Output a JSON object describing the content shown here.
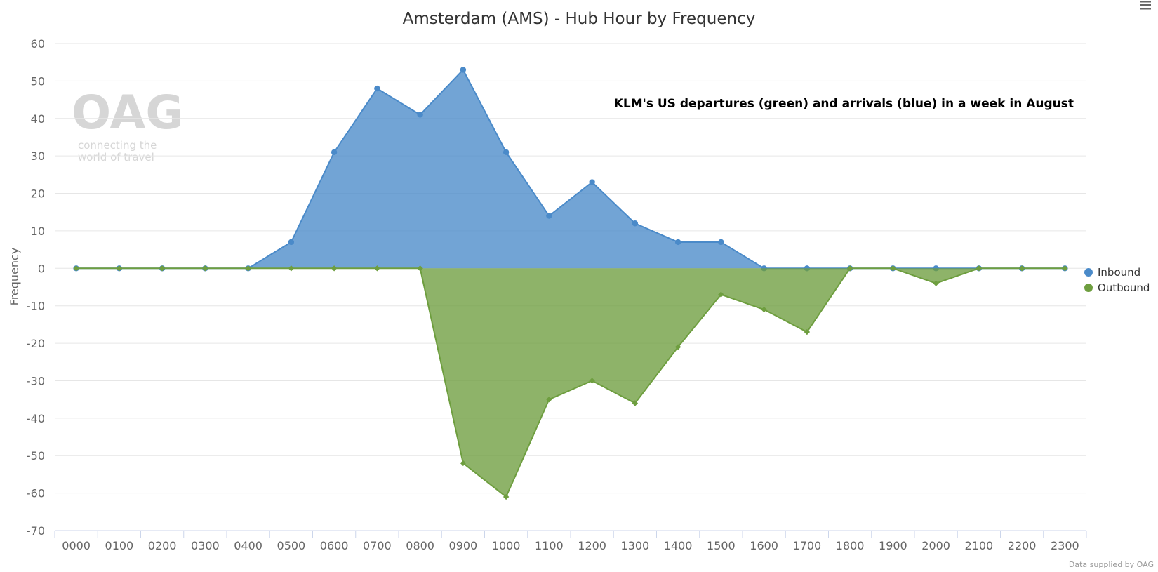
{
  "chart_data": {
    "type": "area",
    "title": "Amsterdam (AMS) - Hub Hour by Frequency",
    "ylabel": "Frequency",
    "xlabel": "",
    "ylim": [
      -70,
      60
    ],
    "yticks": [
      60,
      50,
      40,
      30,
      20,
      10,
      0,
      -10,
      -20,
      -30,
      -40,
      -50,
      -60,
      -70
    ],
    "grid": true,
    "legend_position": "right",
    "annotation": "KLM's US departures (green) and arrivals (blue) in a week in August",
    "categories": [
      "0000",
      "0100",
      "0200",
      "0300",
      "0400",
      "0500",
      "0600",
      "0700",
      "0800",
      "0900",
      "1000",
      "1100",
      "1200",
      "1300",
      "1400",
      "1500",
      "1600",
      "1700",
      "1800",
      "1900",
      "2000",
      "2100",
      "2200",
      "2300"
    ],
    "series": [
      {
        "name": "Inbound",
        "color": "#4a8ac9",
        "values": [
          0,
          0,
          0,
          0,
          0,
          7,
          31,
          48,
          41,
          53,
          31,
          14,
          23,
          12,
          7,
          7,
          0,
          0,
          0,
          0,
          0,
          0,
          0,
          0
        ]
      },
      {
        "name": "Outbound",
        "color": "#6e9e3f",
        "values": [
          0,
          0,
          0,
          0,
          0,
          0,
          0,
          0,
          0,
          -52,
          -61,
          -35,
          -30,
          -36,
          -21,
          -7,
          -11,
          -17,
          0,
          0,
          -4,
          0,
          0,
          0
        ]
      }
    ]
  },
  "watermark": {
    "logo": "OAG",
    "line1": "connecting the",
    "line2": "world of travel"
  },
  "credits": "Data supplied by OAG",
  "menu": {
    "icon": "hamburger-menu-icon"
  }
}
